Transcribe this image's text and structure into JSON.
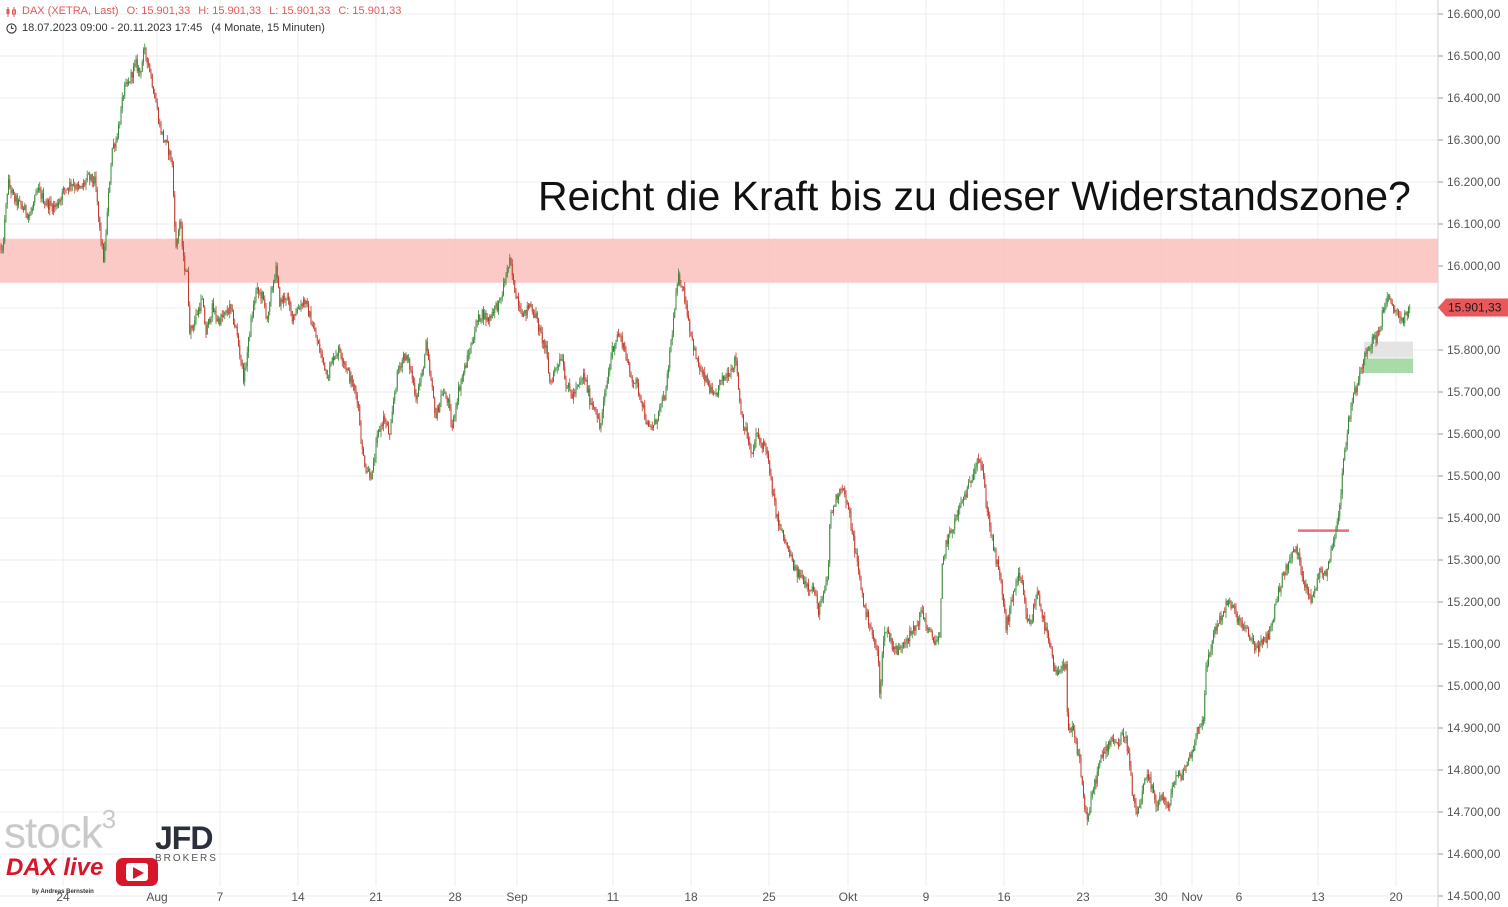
{
  "legend": {
    "instrument": "DAX (XETRA, Last)",
    "open": "O: 15.901,33",
    "high": "H: 15.901,33",
    "low": "L: 15.901,33",
    "close": "C: 15.901,33",
    "range": "18.07.2023 09:00 - 20.11.2023 17:45",
    "interval": "(4 Monate, 15 Minuten)"
  },
  "headline": "Reicht die Kraft bis zu dieser Widerstandszone?",
  "logos": {
    "stock": "stock",
    "stock_sup": "3",
    "jfd": "JFD",
    "jfd_sub": "BROKERS",
    "dax_live": "DAX live",
    "dax_by": "by Andreas Bernstein"
  },
  "colors": {
    "up": "#3a8a3a",
    "down": "#c0392b",
    "resistance_zone": "#fbc4c0",
    "price_label": "#e8575a",
    "grid": "#ececec",
    "support_box": "#a8dba8",
    "neutral_box": "#e4e4e4",
    "marker_line": "#f06a78"
  },
  "chart_data": {
    "type": "candlestick",
    "title": "DAX (XETRA, Last)",
    "ylim": [
      14500,
      16650
    ],
    "y_ticks": [
      "16.600,00",
      "16.500,00",
      "16.400,00",
      "16.300,00",
      "16.200,00",
      "16.100,00",
      "16.000,00",
      "15.900,00",
      "15.800,00",
      "15.700,00",
      "15.600,00",
      "15.500,00",
      "15.400,00",
      "15.300,00",
      "15.200,00",
      "15.100,00",
      "15.000,00",
      "14.900,00",
      "14.800,00",
      "14.700,00",
      "14.600,00",
      "14.500,00"
    ],
    "x_ticks": [
      "24",
      "Aug",
      "7",
      "14",
      "21",
      "28",
      "Sep",
      "11",
      "18",
      "25",
      "Okt",
      "9",
      "16",
      "23",
      "30",
      "Nov",
      "6",
      "13",
      "20"
    ],
    "last_price": "15.901,33",
    "resistance_zone": [
      15960,
      16065
    ],
    "support_zone": [
      15745,
      15780
    ],
    "neutral_zone": [
      15782,
      15820
    ],
    "marker_level": 15370,
    "path": [
      [
        0,
        16050
      ],
      [
        2,
        16020
      ],
      [
        4,
        16080
      ],
      [
        8,
        16200
      ],
      [
        14,
        16160
      ],
      [
        22,
        16140
      ],
      [
        30,
        16120
      ],
      [
        38,
        16180
      ],
      [
        46,
        16150
      ],
      [
        55,
        16140
      ],
      [
        64,
        16180
      ],
      [
        72,
        16200
      ],
      [
        80,
        16180
      ],
      [
        88,
        16210
      ],
      [
        95,
        16200
      ],
      [
        100,
        16080
      ],
      [
        104,
        16010
      ],
      [
        108,
        16150
      ],
      [
        112,
        16280
      ],
      [
        116,
        16300
      ],
      [
        120,
        16350
      ],
      [
        124,
        16420
      ],
      [
        128,
        16430
      ],
      [
        132,
        16460
      ],
      [
        136,
        16480
      ],
      [
        140,
        16460
      ],
      [
        144,
        16510
      ],
      [
        148,
        16490
      ],
      [
        152,
        16440
      ],
      [
        156,
        16390
      ],
      [
        160,
        16330
      ],
      [
        164,
        16300
      ],
      [
        168,
        16280
      ],
      [
        172,
        16250
      ],
      [
        176,
        16040
      ],
      [
        178,
        16080
      ],
      [
        180,
        16110
      ],
      [
        184,
        16000
      ],
      [
        187,
        15990
      ],
      [
        190,
        15840
      ],
      [
        196,
        15880
      ],
      [
        202,
        15920
      ],
      [
        206,
        15840
      ],
      [
        212,
        15900
      ],
      [
        218,
        15870
      ],
      [
        224,
        15880
      ],
      [
        230,
        15900
      ],
      [
        236,
        15850
      ],
      [
        240,
        15790
      ],
      [
        244,
        15730
      ],
      [
        250,
        15850
      ],
      [
        256,
        15940
      ],
      [
        262,
        15930
      ],
      [
        268,
        15870
      ],
      [
        272,
        15950
      ],
      [
        276,
        15990
      ],
      [
        280,
        15910
      ],
      [
        286,
        15930
      ],
      [
        292,
        15880
      ],
      [
        298,
        15900
      ],
      [
        304,
        15920
      ],
      [
        310,
        15880
      ],
      [
        316,
        15830
      ],
      [
        322,
        15780
      ],
      [
        328,
        15740
      ],
      [
        334,
        15790
      ],
      [
        340,
        15800
      ],
      [
        346,
        15760
      ],
      [
        352,
        15720
      ],
      [
        358,
        15680
      ],
      [
        362,
        15560
      ],
      [
        366,
        15520
      ],
      [
        372,
        15500
      ],
      [
        378,
        15600
      ],
      [
        384,
        15640
      ],
      [
        390,
        15590
      ],
      [
        394,
        15690
      ],
      [
        398,
        15750
      ],
      [
        404,
        15790
      ],
      [
        410,
        15760
      ],
      [
        416,
        15690
      ],
      [
        422,
        15740
      ],
      [
        426,
        15810
      ],
      [
        430,
        15740
      ],
      [
        436,
        15640
      ],
      [
        442,
        15700
      ],
      [
        448,
        15680
      ],
      [
        452,
        15610
      ],
      [
        458,
        15700
      ],
      [
        464,
        15750
      ],
      [
        470,
        15800
      ],
      [
        476,
        15860
      ],
      [
        482,
        15890
      ],
      [
        488,
        15870
      ],
      [
        494,
        15900
      ],
      [
        500,
        15910
      ],
      [
        506,
        15980
      ],
      [
        510,
        16010
      ],
      [
        514,
        15950
      ],
      [
        518,
        15920
      ],
      [
        524,
        15880
      ],
      [
        530,
        15910
      ],
      [
        536,
        15880
      ],
      [
        540,
        15840
      ],
      [
        546,
        15800
      ],
      [
        550,
        15720
      ],
      [
        556,
        15760
      ],
      [
        562,
        15790
      ],
      [
        566,
        15720
      ],
      [
        572,
        15690
      ],
      [
        578,
        15710
      ],
      [
        584,
        15740
      ],
      [
        590,
        15680
      ],
      [
        596,
        15660
      ],
      [
        600,
        15610
      ],
      [
        606,
        15710
      ],
      [
        612,
        15800
      ],
      [
        618,
        15840
      ],
      [
        624,
        15810
      ],
      [
        630,
        15740
      ],
      [
        636,
        15720
      ],
      [
        642,
        15680
      ],
      [
        648,
        15610
      ],
      [
        654,
        15620
      ],
      [
        660,
        15660
      ],
      [
        666,
        15700
      ],
      [
        670,
        15800
      ],
      [
        674,
        15880
      ],
      [
        678,
        15970
      ],
      [
        682,
        15960
      ],
      [
        686,
        15910
      ],
      [
        690,
        15850
      ],
      [
        696,
        15780
      ],
      [
        702,
        15740
      ],
      [
        708,
        15720
      ],
      [
        714,
        15680
      ],
      [
        720,
        15720
      ],
      [
        726,
        15740
      ],
      [
        732,
        15760
      ],
      [
        736,
        15780
      ],
      [
        740,
        15670
      ],
      [
        744,
        15620
      ],
      [
        748,
        15590
      ],
      [
        752,
        15540
      ],
      [
        756,
        15600
      ],
      [
        760,
        15580
      ],
      [
        766,
        15570
      ],
      [
        770,
        15500
      ],
      [
        774,
        15440
      ],
      [
        778,
        15390
      ],
      [
        784,
        15350
      ],
      [
        790,
        15310
      ],
      [
        796,
        15270
      ],
      [
        802,
        15260
      ],
      [
        808,
        15240
      ],
      [
        814,
        15230
      ],
      [
        818,
        15180
      ],
      [
        822,
        15200
      ],
      [
        828,
        15260
      ],
      [
        830,
        15400
      ],
      [
        834,
        15430
      ],
      [
        838,
        15460
      ],
      [
        842,
        15480
      ],
      [
        846,
        15440
      ],
      [
        850,
        15400
      ],
      [
        854,
        15340
      ],
      [
        858,
        15280
      ],
      [
        862,
        15220
      ],
      [
        866,
        15170
      ],
      [
        870,
        15150
      ],
      [
        874,
        15100
      ],
      [
        878,
        15080
      ],
      [
        880,
        14960
      ],
      [
        882,
        15080
      ],
      [
        886,
        15140
      ],
      [
        892,
        15100
      ],
      [
        898,
        15080
      ],
      [
        904,
        15110
      ],
      [
        910,
        15120
      ],
      [
        916,
        15140
      ],
      [
        922,
        15180
      ],
      [
        928,
        15130
      ],
      [
        934,
        15110
      ],
      [
        940,
        15110
      ],
      [
        942,
        15280
      ],
      [
        946,
        15340
      ],
      [
        950,
        15360
      ],
      [
        956,
        15400
      ],
      [
        962,
        15440
      ],
      [
        966,
        15460
      ],
      [
        970,
        15480
      ],
      [
        974,
        15520
      ],
      [
        978,
        15550
      ],
      [
        982,
        15520
      ],
      [
        986,
        15440
      ],
      [
        990,
        15380
      ],
      [
        994,
        15320
      ],
      [
        998,
        15280
      ],
      [
        1002,
        15230
      ],
      [
        1006,
        15140
      ],
      [
        1010,
        15180
      ],
      [
        1014,
        15230
      ],
      [
        1018,
        15260
      ],
      [
        1022,
        15240
      ],
      [
        1026,
        15170
      ],
      [
        1030,
        15140
      ],
      [
        1034,
        15190
      ],
      [
        1038,
        15230
      ],
      [
        1042,
        15170
      ],
      [
        1046,
        15130
      ],
      [
        1050,
        15090
      ],
      [
        1054,
        15040
      ],
      [
        1058,
        15020
      ],
      [
        1062,
        15060
      ],
      [
        1066,
        15040
      ],
      [
        1068,
        14880
      ],
      [
        1072,
        14900
      ],
      [
        1076,
        14860
      ],
      [
        1080,
        14820
      ],
      [
        1084,
        14720
      ],
      [
        1088,
        14680
      ],
      [
        1092,
        14740
      ],
      [
        1096,
        14780
      ],
      [
        1100,
        14820
      ],
      [
        1106,
        14850
      ],
      [
        1112,
        14880
      ],
      [
        1118,
        14860
      ],
      [
        1124,
        14890
      ],
      [
        1128,
        14850
      ],
      [
        1132,
        14750
      ],
      [
        1136,
        14690
      ],
      [
        1140,
        14720
      ],
      [
        1146,
        14780
      ],
      [
        1150,
        14770
      ],
      [
        1156,
        14720
      ],
      [
        1162,
        14740
      ],
      [
        1168,
        14700
      ],
      [
        1172,
        14760
      ],
      [
        1176,
        14780
      ],
      [
        1182,
        14790
      ],
      [
        1188,
        14820
      ],
      [
        1194,
        14860
      ],
      [
        1198,
        14900
      ],
      [
        1204,
        14930
      ],
      [
        1206,
        15040
      ],
      [
        1210,
        15080
      ],
      [
        1214,
        15130
      ],
      [
        1218,
        15150
      ],
      [
        1222,
        15170
      ],
      [
        1228,
        15200
      ],
      [
        1234,
        15180
      ],
      [
        1240,
        15150
      ],
      [
        1246,
        15130
      ],
      [
        1252,
        15110
      ],
      [
        1256,
        15090
      ],
      [
        1262,
        15100
      ],
      [
        1268,
        15120
      ],
      [
        1272,
        15150
      ],
      [
        1276,
        15200
      ],
      [
        1280,
        15240
      ],
      [
        1286,
        15280
      ],
      [
        1290,
        15300
      ],
      [
        1296,
        15330
      ],
      [
        1300,
        15290
      ],
      [
        1304,
        15250
      ],
      [
        1308,
        15230
      ],
      [
        1312,
        15200
      ],
      [
        1316,
        15240
      ],
      [
        1320,
        15280
      ],
      [
        1326,
        15270
      ],
      [
        1332,
        15330
      ],
      [
        1336,
        15380
      ],
      [
        1340,
        15430
      ],
      [
        1344,
        15550
      ],
      [
        1348,
        15620
      ],
      [
        1352,
        15680
      ],
      [
        1356,
        15710
      ],
      [
        1360,
        15740
      ],
      [
        1364,
        15790
      ],
      [
        1368,
        15810
      ],
      [
        1372,
        15820
      ],
      [
        1376,
        15830
      ],
      [
        1380,
        15850
      ],
      [
        1384,
        15910
      ],
      [
        1388,
        15920
      ],
      [
        1392,
        15900
      ],
      [
        1398,
        15890
      ],
      [
        1402,
        15870
      ],
      [
        1406,
        15880
      ],
      [
        1410,
        15901
      ]
    ]
  }
}
